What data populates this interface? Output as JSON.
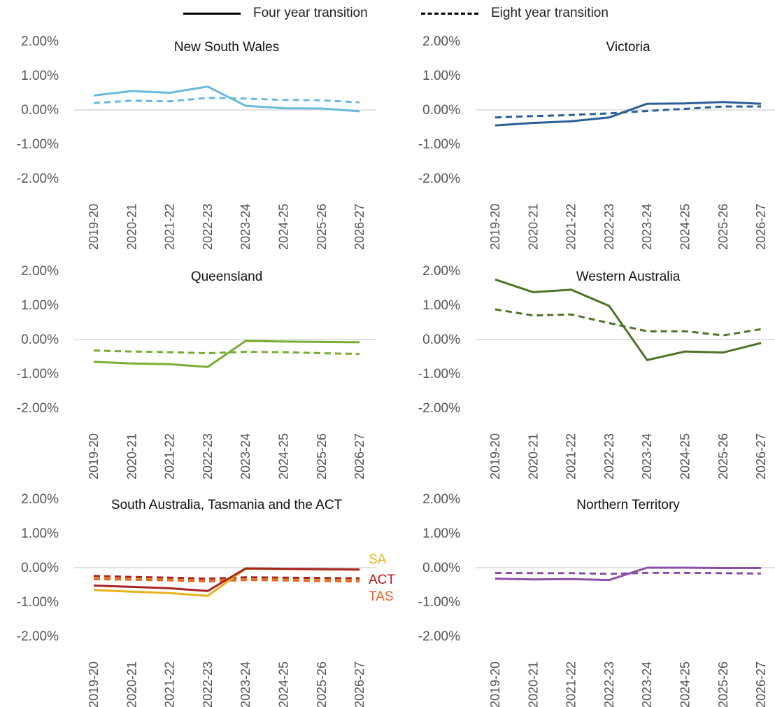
{
  "legend": {
    "solid_label": "Four year transition",
    "dashed_label": "Eight year transition"
  },
  "chart_data": [
    {
      "type": "line",
      "title": "New South Wales",
      "categories": [
        "2019-20",
        "2020-21",
        "2021-22",
        "2022-23",
        "2023-24",
        "2024-25",
        "2025-26",
        "2026-27"
      ],
      "ylim": [
        -2,
        2
      ],
      "yticks": [
        "2.00%",
        "1.00%",
        "0.00%",
        "-1.00%",
        "-2.00%"
      ],
      "series": [
        {
          "style": "solid",
          "color": "#6ab9dc",
          "values": [
            0.42,
            0.55,
            0.5,
            0.68,
            0.12,
            0.05,
            0.04,
            -0.04
          ]
        },
        {
          "style": "dashed",
          "color": "#6ab9dc",
          "values": [
            0.2,
            0.27,
            0.25,
            0.35,
            0.33,
            0.29,
            0.28,
            0.22
          ]
        }
      ]
    },
    {
      "type": "line",
      "title": "Victoria",
      "categories": [
        "2019-20",
        "2020-21",
        "2021-22",
        "2022-23",
        "2023-24",
        "2024-25",
        "2025-26",
        "2026-27"
      ],
      "ylim": [
        -2,
        2
      ],
      "yticks": [
        "2.00%",
        "1.00%",
        "0.00%",
        "-1.00%",
        "-2.00%"
      ],
      "series": [
        {
          "style": "solid",
          "color": "#2a5f98",
          "values": [
            -0.45,
            -0.38,
            -0.33,
            -0.22,
            0.18,
            0.19,
            0.23,
            0.18
          ]
        },
        {
          "style": "dashed",
          "color": "#2a5f98",
          "values": [
            -0.22,
            -0.18,
            -0.15,
            -0.1,
            -0.03,
            0.03,
            0.1,
            0.1
          ]
        }
      ]
    },
    {
      "type": "line",
      "title": "Queensland",
      "categories": [
        "2019-20",
        "2020-21",
        "2021-22",
        "2022-23",
        "2023-24",
        "2024-25",
        "2025-26",
        "2026-27"
      ],
      "ylim": [
        -2,
        2
      ],
      "yticks": [
        "2.00%",
        "1.00%",
        "0.00%",
        "-1.00%",
        "-2.00%"
      ],
      "series": [
        {
          "style": "solid",
          "color": "#7aab32",
          "values": [
            -0.65,
            -0.7,
            -0.72,
            -0.8,
            -0.04,
            -0.06,
            -0.07,
            -0.08
          ]
        },
        {
          "style": "dashed",
          "color": "#7aab32",
          "values": [
            -0.32,
            -0.35,
            -0.37,
            -0.4,
            -0.36,
            -0.37,
            -0.4,
            -0.42
          ]
        }
      ]
    },
    {
      "type": "line",
      "title": "Western Australia",
      "categories": [
        "2019-20",
        "2020-21",
        "2021-22",
        "2022-23",
        "2023-24",
        "2024-25",
        "2025-26",
        "2026-27"
      ],
      "ylim": [
        -2,
        2
      ],
      "yticks": [
        "2.00%",
        "1.00%",
        "0.00%",
        "-1.00%",
        "-2.00%"
      ],
      "series": [
        {
          "style": "solid",
          "color": "#4e7326",
          "values": [
            1.75,
            1.38,
            1.45,
            0.98,
            -0.6,
            -0.35,
            -0.38,
            -0.1
          ]
        },
        {
          "style": "dashed",
          "color": "#4e7326",
          "values": [
            0.88,
            0.7,
            0.73,
            0.48,
            0.24,
            0.24,
            0.12,
            0.3
          ]
        }
      ]
    },
    {
      "type": "line",
      "title": "South Australia, Tasmania and the ACT",
      "categories": [
        "2019-20",
        "2020-21",
        "2021-22",
        "2022-23",
        "2023-24",
        "2024-25",
        "2025-26",
        "2026-27"
      ],
      "ylim": [
        -2,
        2
      ],
      "yticks": [
        "2.00%",
        "1.00%",
        "0.00%",
        "-1.00%",
        "-2.00%"
      ],
      "series": [
        {
          "style": "solid",
          "color": "#e8b21c",
          "values": [
            -0.65,
            -0.7,
            -0.74,
            -0.82,
            -0.03,
            -0.04,
            -0.05,
            -0.06
          ]
        },
        {
          "style": "dashed",
          "color": "#e8b21c",
          "values": [
            -0.3,
            -0.32,
            -0.34,
            -0.37,
            -0.32,
            -0.33,
            -0.35,
            -0.36
          ]
        },
        {
          "style": "solid",
          "color": "#a82424",
          "values": [
            -0.52,
            -0.56,
            -0.6,
            -0.68,
            -0.02,
            -0.03,
            -0.04,
            -0.05
          ]
        },
        {
          "style": "dashed",
          "color": "#a82424",
          "values": [
            -0.24,
            -0.27,
            -0.29,
            -0.32,
            -0.28,
            -0.29,
            -0.3,
            -0.31
          ]
        },
        {
          "style": "dashed",
          "color": "#e8622a",
          "values": [
            -0.33,
            -0.35,
            -0.37,
            -0.4,
            -0.36,
            -0.37,
            -0.39,
            -0.4
          ]
        }
      ],
      "labels": [
        {
          "text": "SA",
          "color": "#e8b21c"
        },
        {
          "text": "ACT",
          "color": "#b01a1a"
        },
        {
          "text": "TAS",
          "color": "#e8622a"
        }
      ]
    },
    {
      "type": "line",
      "title": "Northern Territory",
      "categories": [
        "2019-20",
        "2020-21",
        "2021-22",
        "2022-23",
        "2023-24",
        "2024-25",
        "2025-26",
        "2026-27"
      ],
      "ylim": [
        -2,
        2
      ],
      "yticks": [
        "2.00%",
        "1.00%",
        "0.00%",
        "-1.00%",
        "-2.00%"
      ],
      "series": [
        {
          "style": "solid",
          "color": "#8a4fa8",
          "values": [
            -0.32,
            -0.34,
            -0.33,
            -0.36,
            0.0,
            0.0,
            -0.01,
            -0.01
          ]
        },
        {
          "style": "dashed",
          "color": "#8a4fa8",
          "values": [
            -0.15,
            -0.16,
            -0.16,
            -0.18,
            -0.15,
            -0.15,
            -0.16,
            -0.17
          ]
        }
      ]
    }
  ]
}
